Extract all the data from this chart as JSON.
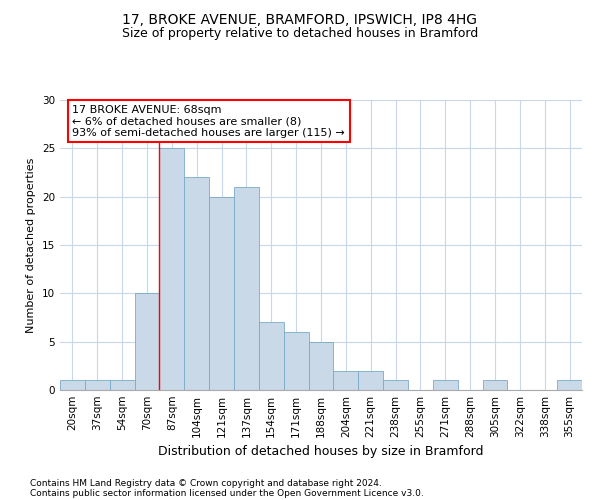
{
  "title_line1": "17, BROKE AVENUE, BRAMFORD, IPSWICH, IP8 4HG",
  "title_line2": "Size of property relative to detached houses in Bramford",
  "xlabel": "Distribution of detached houses by size in Bramford",
  "ylabel": "Number of detached properties",
  "bins": [
    "20sqm",
    "37sqm",
    "54sqm",
    "70sqm",
    "87sqm",
    "104sqm",
    "121sqm",
    "137sqm",
    "154sqm",
    "171sqm",
    "188sqm",
    "204sqm",
    "221sqm",
    "238sqm",
    "255sqm",
    "271sqm",
    "288sqm",
    "305sqm",
    "322sqm",
    "338sqm",
    "355sqm"
  ],
  "values": [
    1,
    1,
    1,
    10,
    25,
    22,
    20,
    21,
    7,
    6,
    5,
    2,
    2,
    1,
    0,
    1,
    0,
    1,
    0,
    0,
    1
  ],
  "bar_color": "#c9d9e8",
  "bar_edge_color": "#7aaac8",
  "grid_color": "#c8d8e8",
  "annotation_text_line1": "17 BROKE AVENUE: 68sqm",
  "annotation_text_line2": "← 6% of detached houses are smaller (8)",
  "annotation_text_line3": "93% of semi-detached houses are larger (115) →",
  "annotation_box_color": "white",
  "annotation_box_edge": "red",
  "red_line_x": 3.5,
  "footer_line1": "Contains HM Land Registry data © Crown copyright and database right 2024.",
  "footer_line2": "Contains public sector information licensed under the Open Government Licence v3.0.",
  "ylim": [
    0,
    30
  ],
  "yticks": [
    0,
    5,
    10,
    15,
    20,
    25,
    30
  ],
  "title_fontsize": 10,
  "subtitle_fontsize": 9,
  "ylabel_fontsize": 8,
  "xlabel_fontsize": 9,
  "tick_fontsize": 7.5,
  "annotation_fontsize": 8,
  "footer_fontsize": 6.5
}
